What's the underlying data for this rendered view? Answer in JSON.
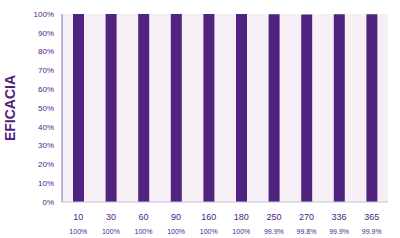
{
  "chart_data": {
    "type": "bar",
    "y_label": "EFICACIA",
    "categories": [
      "10",
      "30",
      "60",
      "90",
      "160",
      "180",
      "250",
      "270",
      "336",
      "365"
    ],
    "values": [
      100,
      100,
      100,
      100,
      100,
      100,
      99.9,
      99.8,
      99.9,
      99.9
    ],
    "value_labels": [
      "100%",
      "100%",
      "100%",
      "100%",
      "100%",
      "100%",
      "99.9%",
      "99.8%",
      "99.9%",
      "99.9%"
    ],
    "data_labels": true,
    "color": "#4f237f",
    "ylim": [
      0,
      100
    ],
    "yticks": [
      {
        "value": 0,
        "label": "0%"
      },
      {
        "value": 10,
        "label": "10%"
      },
      {
        "value": 20,
        "label": "20%"
      },
      {
        "value": 30,
        "label": "30%"
      },
      {
        "value": 40,
        "label": "40%"
      },
      {
        "value": 50,
        "label": "50%"
      },
      {
        "value": 60,
        "label": "60%"
      },
      {
        "value": 70,
        "label": "70%"
      },
      {
        "value": 80,
        "label": "80%"
      },
      {
        "value": 90,
        "label": "90%"
      },
      {
        "value": 100,
        "label": "100%"
      }
    ]
  }
}
